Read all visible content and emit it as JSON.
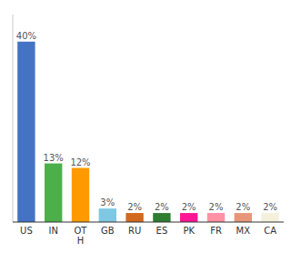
{
  "chart_data": {
    "type": "bar",
    "categories": [
      "US",
      "IN",
      "OT\nH",
      "GB",
      "RU",
      "ES",
      "PK",
      "FR",
      "MX",
      "CA"
    ],
    "values": [
      40,
      13,
      12,
      3,
      2,
      2,
      2,
      2,
      2,
      2
    ],
    "value_labels": [
      "40%",
      "13%",
      "12%",
      "3%",
      "2%",
      "2%",
      "2%",
      "2%",
      "2%",
      "2%"
    ],
    "colors": [
      "#4472c4",
      "#4daf4a",
      "#ff9900",
      "#7ec8e3",
      "#d2691e",
      "#2e7d32",
      "#ff1493",
      "#ff91a4",
      "#e8967a",
      "#f5f0dc"
    ],
    "ylim": [
      0,
      46
    ],
    "data_labels": true,
    "tick_labels": "x",
    "grid": false
  }
}
